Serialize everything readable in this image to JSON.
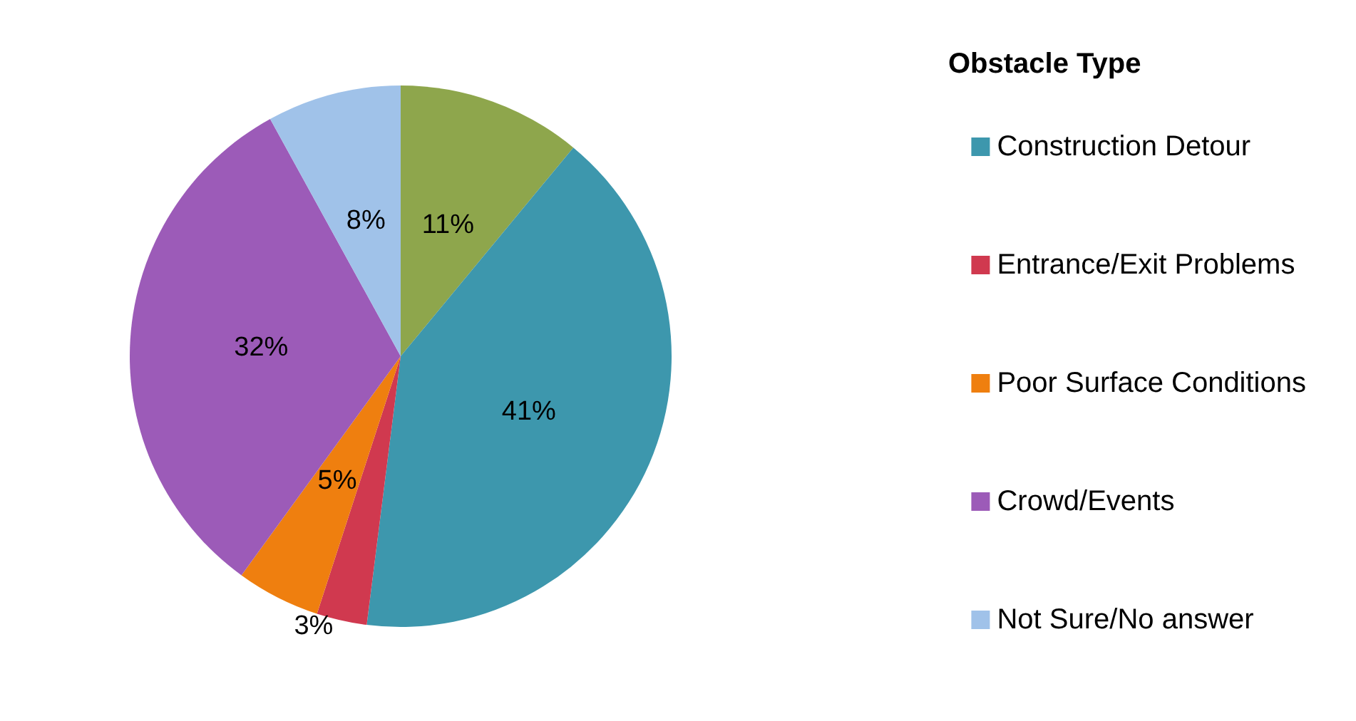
{
  "chart_data": {
    "type": "pie",
    "legend_title": "Obstacle Type",
    "legend": "right",
    "categories": [
      null,
      "Construction Detour",
      "Entrance/Exit Problems",
      "Poor Surface Conditions",
      "Crowd/Events",
      "Not Sure/No answer"
    ],
    "values": [
      11,
      41,
      3,
      5,
      32,
      8
    ],
    "value_labels": [
      "11%",
      "41%",
      "3%",
      "5%",
      "32%",
      "8%"
    ],
    "colors": [
      "#8ea64c",
      "#3d97ad",
      "#d0394f",
      "#ef7f0f",
      "#9c5bb8",
      "#a0c2e9"
    ]
  }
}
